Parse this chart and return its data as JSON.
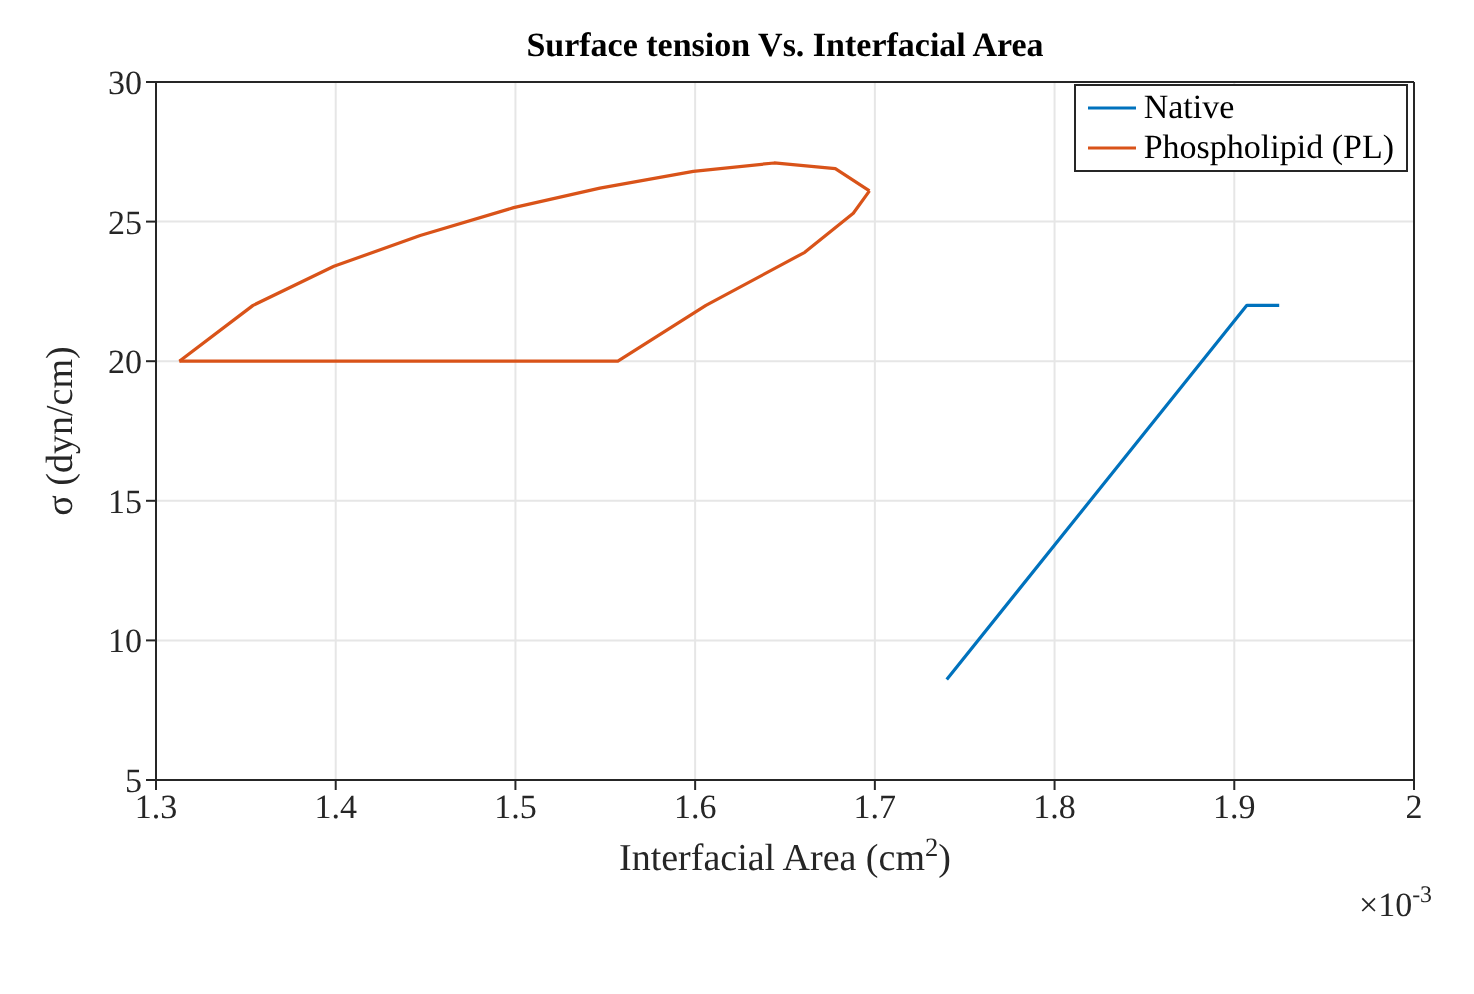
{
  "chart_data": {
    "type": "line",
    "title": "Surface tension Vs. Interfacial Area",
    "xlabel": "Interfacial Area (cm$^{2}$)",
    "ylabel": "σ (dyn/cm)",
    "annotations": [
      "×10$^{-3}$"
    ],
    "xlim": [
      1.3,
      2
    ],
    "xticks": [
      1.3,
      1.4,
      1.5,
      1.6,
      1.7,
      1.8,
      1.9,
      2
    ],
    "ylim": [
      5,
      30
    ],
    "yticks": [
      5,
      10,
      15,
      20,
      25,
      30
    ],
    "grid": true,
    "legend": "top right",
    "marker": "none",
    "line_style": "solid",
    "series": [
      {
        "name": "Native",
        "color": "#0072bd",
        "x": [
          1.74,
          1.907,
          1.925
        ],
        "values": [
          8.6,
          22,
          22
        ]
      },
      {
        "name": "Phospholipid (PL)",
        "color": "#d95319",
        "x": [
          1.313,
          1.354,
          1.399,
          1.447,
          1.499,
          1.547,
          1.599,
          1.644,
          1.678,
          1.697
        ],
        "values": [
          20,
          22,
          23.4,
          24.5,
          25.5,
          26.2,
          26.8,
          27.1,
          26.9,
          26.1
        ]
      },
      {
        "color": "#d95319",
        "x": [
          1.313,
          1.557,
          1.606,
          1.661,
          1.688,
          1.697
        ],
        "values": [
          20,
          20,
          22,
          23.9,
          25.3,
          26.1
        ]
      }
    ]
  }
}
